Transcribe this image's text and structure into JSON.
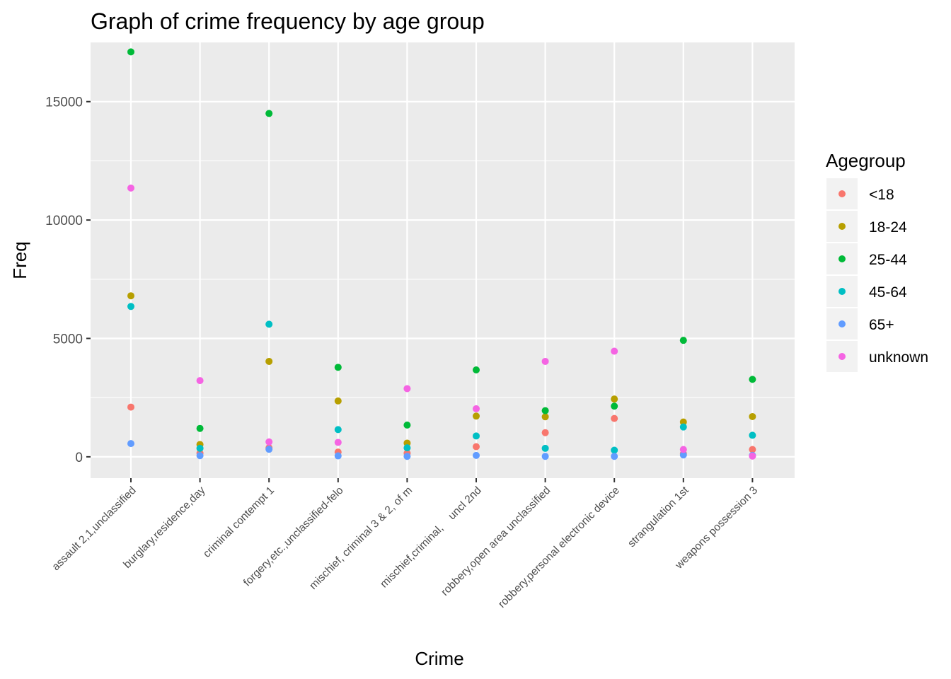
{
  "chart_data": {
    "type": "scatter",
    "title": "Graph of crime frequency by age group",
    "xlabel": "Crime",
    "ylabel": "Freq",
    "ylim": [
      -900,
      17500
    ],
    "yticks": [
      0,
      5000,
      10000,
      15000
    ],
    "grid": true,
    "legend_position": "right",
    "legend_title": "Agegroup",
    "categories": [
      "assault 2,1,unclassified",
      "burglary,residence,day",
      "criminal contempt 1",
      "forgery,etc.,unclassified-felo",
      "mischief, criminal 3 & 2, of m",
      "mischief,criminal,    uncl 2nd",
      "robbery,open area unclassified",
      "robbery,personal electronic device",
      "strangulation 1st",
      "weapons possession 3"
    ],
    "series": [
      {
        "name": "<18",
        "color": "#F8766D",
        "values": [
          2100,
          150,
          380,
          200,
          150,
          430,
          1020,
          1620,
          130,
          310
        ]
      },
      {
        "name": "18-24",
        "color": "#B79F00",
        "values": [
          6800,
          520,
          4030,
          2360,
          580,
          1720,
          1690,
          2440,
          1470,
          1700
        ]
      },
      {
        "name": "25-44",
        "color": "#00BA38",
        "values": [
          17100,
          1200,
          14500,
          3780,
          1340,
          3670,
          1950,
          2140,
          4920,
          3270
        ]
      },
      {
        "name": "45-64",
        "color": "#00BFC4",
        "values": [
          6350,
          360,
          5600,
          1150,
          380,
          880,
          360,
          280,
          1260,
          910
        ]
      },
      {
        "name": "65+",
        "color": "#619CFF",
        "values": [
          560,
          50,
          320,
          40,
          20,
          60,
          20,
          20,
          80,
          60
        ]
      },
      {
        "name": "unknown",
        "color": "#F564E3",
        "values": [
          11350,
          3220,
          630,
          610,
          2880,
          2030,
          4030,
          4460,
          310,
          30
        ]
      }
    ]
  }
}
